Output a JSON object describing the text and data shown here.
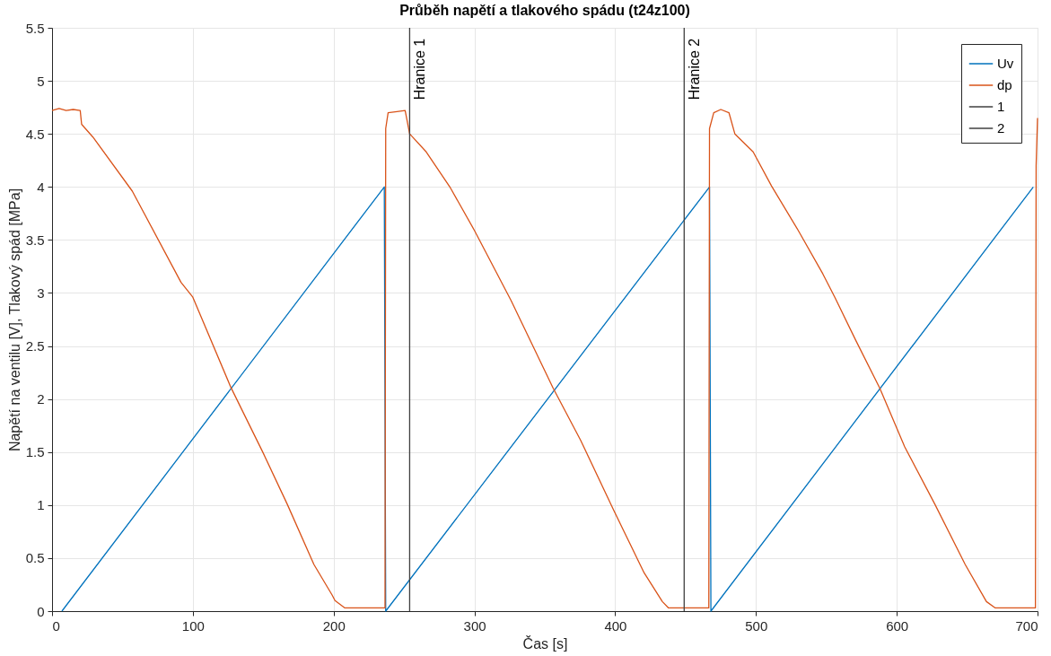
{
  "chart_data": {
    "type": "line",
    "title": "Průběh napětí a tlakového spádu (t24z100)",
    "xlabel": "Čas [s]",
    "ylabel": "Napětí na ventilu [V], Tlakový spád [MPa]",
    "xlim": [
      0,
      700
    ],
    "xticks": [
      0,
      100,
      200,
      300,
      400,
      500,
      600,
      700
    ],
    "ylim": [
      0,
      5.5
    ],
    "yticks": [
      0,
      0.5,
      1,
      1.5,
      2,
      2.5,
      3,
      3.5,
      4,
      4.5,
      5,
      5.5
    ],
    "grid": true,
    "legend": "top right",
    "line_style": "solid",
    "marker": "none",
    "series": [
      {
        "name": "Uv",
        "color": "#0072bd",
        "type": "line",
        "x": [
          7,
          236,
          237,
          467,
          468,
          697
        ],
        "values": [
          0,
          4,
          0,
          4,
          0,
          4
        ]
      },
      {
        "name": "dp",
        "color": "#d95319",
        "type": "line",
        "x": [
          0,
          5,
          10,
          15,
          20,
          21,
          29,
          57,
          91.6,
          100,
          127,
          150,
          167,
          186,
          199,
          201,
          208,
          220,
          236.5,
          237,
          238.7,
          245,
          250.8,
          254,
          265.8,
          283,
          300,
          326,
          356,
          375.5,
          399,
          420.6,
          433.5,
          437.9,
          450,
          466.5,
          467,
          470,
          475,
          480.8,
          485,
          498,
          511,
          530,
          547.5,
          556,
          571,
          588,
          605.6,
          627,
          648.6,
          663.7,
          670,
          685,
          698.5,
          699,
          700
        ],
        "values": [
          4.72,
          4.74,
          4.72,
          4.73,
          4.72,
          4.59,
          4.47,
          3.96,
          3.1,
          2.96,
          2.11,
          1.49,
          1.01,
          0.44,
          0.15,
          0.1,
          0.03,
          0.03,
          0.03,
          4.55,
          4.7,
          4.71,
          4.72,
          4.5,
          4.33,
          3.99,
          3.59,
          2.93,
          2.1,
          1.61,
          0.95,
          0.36,
          0.09,
          0.03,
          0.03,
          0.03,
          4.55,
          4.7,
          4.73,
          4.7,
          4.5,
          4.33,
          4.01,
          3.59,
          3.18,
          2.96,
          2.55,
          2.1,
          1.55,
          1.01,
          0.44,
          0.09,
          0.03,
          0.03,
          0.03,
          4.2,
          4.65
        ]
      },
      {
        "name": "1",
        "color": "#404040",
        "type": "line",
        "x": [
          254,
          254
        ],
        "values": [
          0,
          5.5
        ]
      },
      {
        "name": "2",
        "color": "#404040",
        "type": "line",
        "x": [
          449,
          449
        ],
        "values": [
          0,
          5.5
        ]
      }
    ],
    "annotations": [
      {
        "text": "Hranice 1",
        "x": 254,
        "y": 5.4
      },
      {
        "text": "Hranice 2",
        "x": 449,
        "y": 5.4
      }
    ]
  }
}
